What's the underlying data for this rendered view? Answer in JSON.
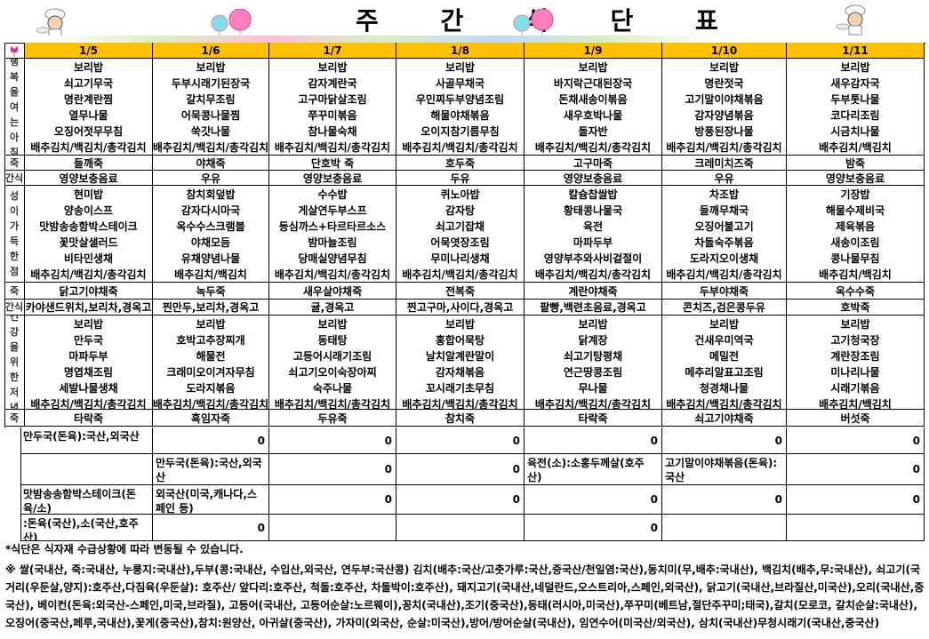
{
  "title": "주 간 식 단 표",
  "days": [
    "1/5",
    "1/6",
    "1/7",
    "1/8",
    "1/9",
    "1/10",
    "1/11"
  ],
  "colors": {
    "header_bg": "#ffc000",
    "border": "#000000"
  },
  "sections": [
    {
      "label": "행복을여는아침",
      "kind": "meal",
      "items": [
        [
          "보리밥",
          "쇠고기무국",
          "명란계란찜",
          "열무나물",
          "오징어젓무무침",
          "배추김치/백김치/총각김치"
        ],
        [
          "보리밥",
          "두부시래기된장국",
          "갈치무조림",
          "어묵콩나물찜",
          "쑥갓나물",
          "배추김치/백김치/총각김치"
        ],
        [
          "보리밥",
          "감자계란국",
          "고구마닭살조림",
          "쭈꾸미볶음",
          "참나물숙채",
          "배추김치/백김치/총각김치"
        ],
        [
          "보리밥",
          "사골무채국",
          "우민찌두부양념조림",
          "해물야채볶음",
          "오이지참기름무침",
          "배추김치/백김치/총각김치"
        ],
        [
          "보리밥",
          "바지락근대된장국",
          "돈채새송이볶음",
          "새우호박나물",
          "돌자반",
          "배추김치/백김치/총각김치"
        ],
        [
          "보리밥",
          "명란젓국",
          "고기말이야채볶음",
          "감자양념볶음",
          "방풍된장나물",
          "배추김치/백김치/총각김치"
        ],
        [
          "보리밥",
          "새우감자국",
          "두부톳나물",
          "코다리조림",
          "시금치나물",
          "배추김치/백김치"
        ]
      ]
    },
    {
      "label": "죽",
      "kind": "single",
      "items": [
        "들깨죽",
        "야채죽",
        "단호박 죽",
        "호두죽",
        "고구마죽",
        "크레미치즈죽",
        "밤죽"
      ]
    },
    {
      "label": "간식",
      "kind": "single",
      "items": [
        "영양보충음료",
        "우유",
        "영양보충음료",
        "두유",
        "영양보충음료",
        "우유",
        "영양보충음료"
      ]
    },
    {
      "label": "정성이가득한점심",
      "kind": "meal",
      "items": [
        [
          "현미밥",
          "양송이스프",
          "맛밤송송함박스테이크",
          "꽃맛살샐러드",
          "비타민생채",
          "배추김치/백김치/총각김치"
        ],
        [
          "참치회덮밥",
          "감자다시마국",
          "옥수수스크램블",
          "야채모듬",
          "유채양념나물",
          "배추김치/백김치"
        ],
        [
          "수수밥",
          "게살연두부스프",
          "등심까스+타르타르소스",
          "밤마늘조림",
          "당매실양념무침",
          "배추김치/백김치/총각김치"
        ],
        [
          "퀴노아밥",
          "감자탕",
          "쇠고기잡채",
          "어묵엿장조림",
          "무미나리생채",
          "배추김치/백김치/총각김치"
        ],
        [
          "칼슘찹쌀밥",
          "황태콩나물국",
          "육전",
          "마파두부",
          "영양부추와사비겉절이",
          "배추김치/백김치/총각김치"
        ],
        [
          "차조밥",
          "들깨무채국",
          "오징어불고기",
          "차돌숙주볶음",
          "도라지오이생채",
          "배추김치/백김치/총각김치"
        ],
        [
          "기장밥",
          "해물수제비국",
          "제육볶음",
          "새송이조림",
          "콩나물무침",
          "배추김치/백김치"
        ]
      ]
    },
    {
      "label": "죽",
      "kind": "single",
      "items": [
        "닭고기야채죽",
        "녹두죽",
        "새우살야채죽",
        "전복죽",
        "계란야채죽",
        "두부야채죽",
        "옥수수죽"
      ]
    },
    {
      "label": "간식",
      "kind": "single",
      "items": [
        "카야샌드위치,보리차,경옥고",
        "찐만두,보리차,경옥고",
        "귤,경옥고",
        "찐고구마,사이다,경옥고",
        "팥빵,백련초음료,경옥고",
        "콘치즈,검은콩두유",
        "호박죽"
      ]
    },
    {
      "label": "건강을위한저녁",
      "kind": "meal",
      "items": [
        [
          "보리밥",
          "만두국",
          "마파두부",
          "명엽채조림",
          "세발나물생채",
          "배추김치/백김치/총각김치"
        ],
        [
          "보리밥",
          "호박고추장찌개",
          "해물전",
          "크래미오이겨자무침",
          "도라지볶음",
          "배추김치/백김치/총각김치"
        ],
        [
          "보리밥",
          "동태탕",
          "고등어시래기조림",
          "쇠고기오이숙장아찌",
          "숙주나물",
          "배추김치/백김치/총각김치"
        ],
        [
          "보리밥",
          "홍합어묵탕",
          "날치알계란말이",
          "감자채볶음",
          "꼬시래기초무침",
          "배추김치/백김치/총각김치"
        ],
        [
          "보리밥",
          "닭계장",
          "쇠고기탕평채",
          "연근땅콩조림",
          "무나물",
          "배추김치/백김치/총각김치"
        ],
        [
          "보리밥",
          "건새우미역국",
          "메밀전",
          "메추리알표고조림",
          "청경채나물",
          "배추김치/백김치/총각김치"
        ],
        [
          "보리밥",
          "고기청국장",
          "계란장조림",
          "미나리나물",
          "시래기볶음",
          "배추김치/백김치"
        ]
      ]
    },
    {
      "label": "죽",
      "kind": "single",
      "items": [
        "타락죽",
        "흑임자죽",
        "두유죽",
        "참치죽",
        "타락죽",
        "쇠고기야채죽",
        "버섯죽"
      ]
    }
  ],
  "origin_rows": [
    [
      "만두국(돈육):국산,외국산",
      "0",
      "0",
      "0",
      "0",
      "0",
      "0"
    ],
    [
      "",
      "만두국(돈육):국산,외국산",
      "0",
      "0",
      "육전(소):소홍두께살(호주산)",
      "고기말이야채볶음(돈육):국산",
      "0"
    ],
    [
      "맛밤송송함박스테이크(돈육/소)",
      "외국산(미국,캐나다,스페인 등)",
      "0",
      "0",
      "0",
      "0",
      "0"
    ],
    [
      ":돈육(국산),소(국산,호주산)",
      "0",
      "",
      "",
      "0",
      "",
      ""
    ]
  ],
  "notes": {
    "change_notice": "*식단은 식자재 수급상황에 따라 변동될 수 있습니다.",
    "origin_notice": "※ 쌀(국내산, 죽:국내산, 누룽지:국내산),두부(콩:국내산, 수입산,외국산, 연두부:국산콩) 김치(배추:국산/고춧가루:국산,중국산/천일염:국산),동치미(무,배추:국내산), 백김치(배추,무:국내산), 쇠고기(국거리(우둔살,양지):호주산,다짐육(우둔살): 호주산/ 앞다리:호주산, 척돌:호주산, 차돌박이:호주산), 돼지고기(국내산,네덜란드,오스트리아,스페인,외국산), 닭고기(국내산,브라질산,미국산),오리(국내산,중국산), 베이컨(돈육:외국산-스페인,미국,브라질), 고등어(국내산, 고등어순살:노르웨이),꽁치(국내산),조기(중국산),동태(러시아,미국산),쭈꾸미(베트남,절단주꾸미;태국),갈치(모로코, 갈치순살:국내산),오징어(중국산,페루,국내산),꽃게(중국산),참치:원양산, 아귀살(중국산), 가자미(외국산, 순살:미국산),방어/방어순살(국내산), 임연수어(미국산/외국산), 삼치(국내산)무청시래기(국내산,중국산)"
  }
}
